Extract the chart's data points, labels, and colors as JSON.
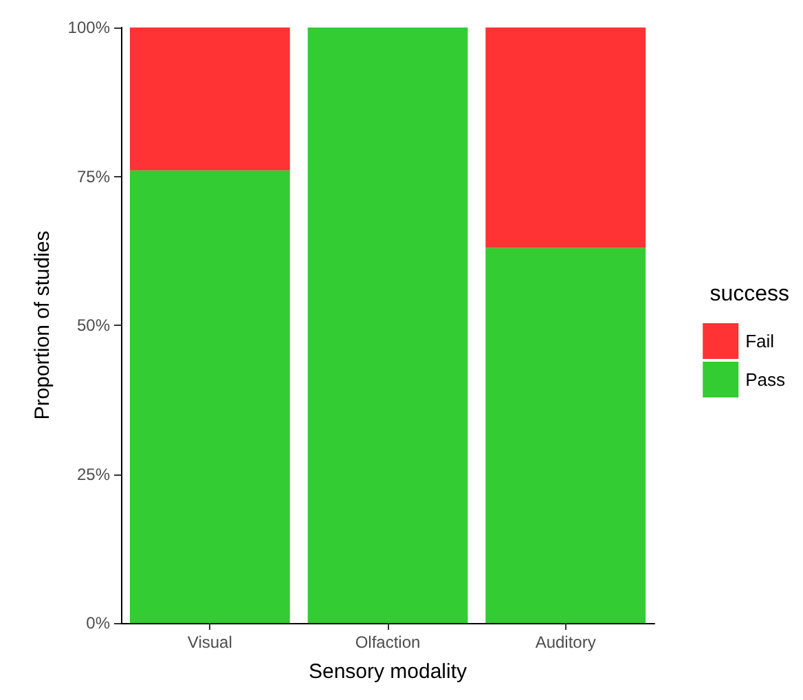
{
  "chart_data": {
    "type": "bar",
    "stacked": true,
    "xlabel": "Sensory modality",
    "ylabel": "Proportion of studies",
    "legend_title": "success",
    "legend": "right",
    "grid": false,
    "categories": [
      "Visual",
      "Olfaction",
      "Auditory"
    ],
    "series": [
      {
        "name": "Pass",
        "color": "#33cc33",
        "values": [
          76,
          100,
          63
        ]
      },
      {
        "name": "Fail",
        "color": "#ff3333",
        "values": [
          24,
          0,
          37
        ]
      }
    ],
    "ylim": [
      0,
      100
    ],
    "yticks": [
      {
        "value": 0,
        "label": "0%"
      },
      {
        "value": 25,
        "label": "25%"
      },
      {
        "value": 50,
        "label": "50%"
      },
      {
        "value": 75,
        "label": "75%"
      },
      {
        "value": 100,
        "label": "100%"
      }
    ]
  }
}
